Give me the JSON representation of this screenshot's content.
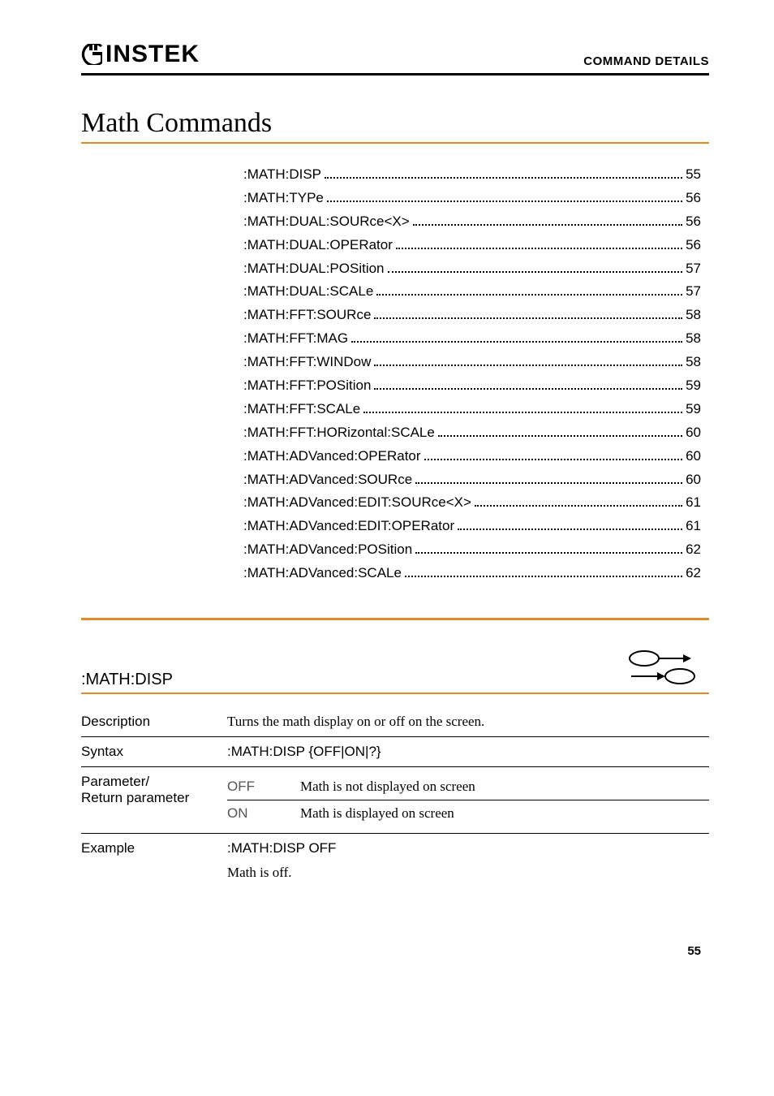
{
  "header": {
    "logo_text": "INSTEK",
    "right_text": "COMMAND DETAILS"
  },
  "section_title": "Math Commands",
  "toc": [
    {
      "label": ":MATH:DISP",
      "page": "55"
    },
    {
      "label": ":MATH:TYPe",
      "page": "56"
    },
    {
      "label": ":MATH:DUAL:SOURce<X>",
      "page": "56"
    },
    {
      "label": ":MATH:DUAL:OPERator",
      "page": "56"
    },
    {
      "label": ":MATH:DUAL:POSition",
      "page": "57"
    },
    {
      "label": ":MATH:DUAL:SCALe",
      "page": "57"
    },
    {
      "label": ":MATH:FFT:SOURce",
      "page": "58"
    },
    {
      "label": ":MATH:FFT:MAG",
      "page": "58"
    },
    {
      "label": ":MATH:FFT:WINDow",
      "page": "58"
    },
    {
      "label": ":MATH:FFT:POSition",
      "page": "59"
    },
    {
      "label": ":MATH:FFT:SCALe",
      "page": "59"
    },
    {
      "label": ":MATH:FFT:HORizontal:SCALe",
      "page": "60"
    },
    {
      "label": ":MATH:ADVanced:OPERator",
      "page": "60"
    },
    {
      "label": ":MATH:ADVanced:SOURce",
      "page": "60"
    },
    {
      "label": ":MATH:ADVanced:EDIT:SOURce<X>",
      "page": "61"
    },
    {
      "label": ":MATH:ADVanced:EDIT:OPERator",
      "page": "61"
    },
    {
      "label": ":MATH:ADVanced:POSition",
      "page": "62"
    },
    {
      "label": ":MATH:ADVanced:SCALe",
      "page": "62"
    }
  ],
  "command": {
    "name": ":MATH:DISP",
    "description_label": "Description",
    "description_value": "Turns the math display on or off on the screen.",
    "syntax_label": "Syntax",
    "syntax_value": ":MATH:DISP {OFF|ON|?}",
    "param_label_line1": "Parameter/",
    "param_label_line2": "Return parameter",
    "params": [
      {
        "key": "OFF",
        "desc": "Math is not displayed on screen"
      },
      {
        "key": "ON",
        "desc": "Math is displayed on screen"
      }
    ],
    "example_label": "Example",
    "example_line1": ":MATH:DISP OFF",
    "example_line2": "Math is off."
  },
  "page_number": "55",
  "colors": {
    "accent": "#e08a2d",
    "text": "#000000",
    "muted": "#555555"
  }
}
